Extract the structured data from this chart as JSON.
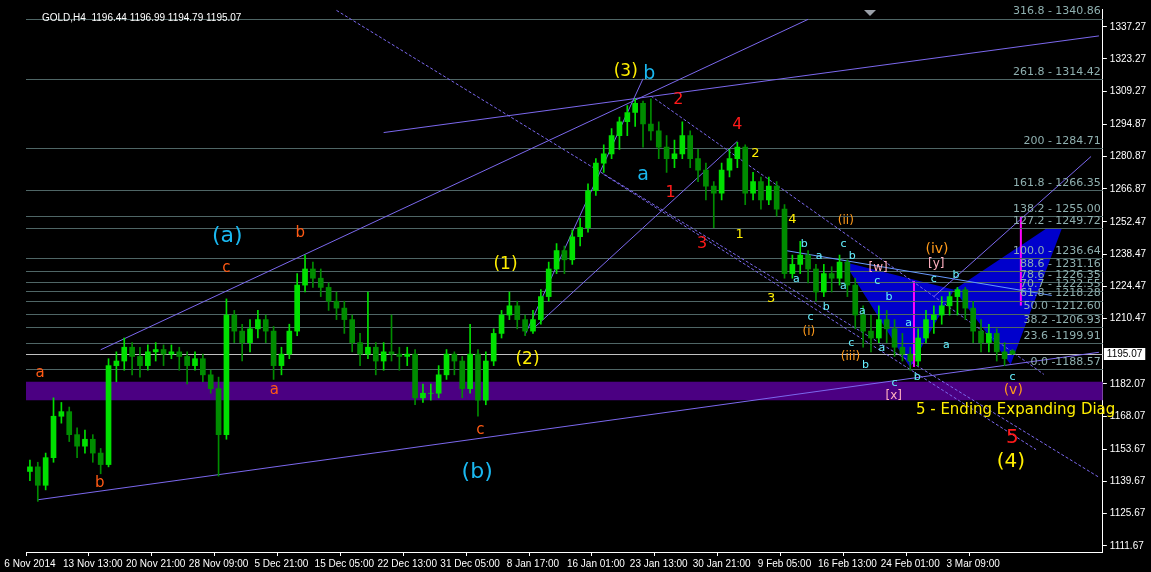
{
  "chart_data": {
    "type": "candlestick",
    "title": "GOLD,H4  1196.44 1196.99 1194.79 1195.07",
    "categories": [
      "6 Nov 2014",
      null,
      null,
      null,
      null,
      null,
      null,
      null,
      "13 Nov 13:00",
      null,
      null,
      null,
      null,
      null,
      null,
      null,
      "20 Nov 21:00",
      null,
      null,
      null,
      null,
      null,
      null,
      null,
      "28 Nov 09:00",
      null,
      null,
      null,
      null,
      null,
      null,
      null,
      "5 Dec 21:00",
      null,
      null,
      null,
      null,
      null,
      null,
      null,
      "15 Dec 05:00",
      null,
      null,
      null,
      null,
      null,
      null,
      null,
      "22 Dec 13:00",
      null,
      null,
      null,
      null,
      null,
      null,
      null,
      "31 Dec 05:00",
      null,
      null,
      null,
      null,
      null,
      null,
      null,
      "8 Jan 17:00",
      null,
      null,
      null,
      null,
      null,
      null,
      null,
      "16 Jan 01:00",
      null,
      null,
      null,
      null,
      null,
      null,
      null,
      "23 Jan 13:00",
      null,
      null,
      null,
      null,
      null,
      null,
      null,
      "30 Jan 21:00",
      null,
      null,
      null,
      null,
      null,
      null,
      null,
      "9 Feb 05:00",
      null,
      null,
      null,
      null,
      null,
      null,
      null,
      "16 Feb 13:00",
      null,
      null,
      null,
      null,
      null,
      null,
      null,
      "24 Feb 01:00",
      null,
      null,
      null,
      null,
      null,
      null,
      null,
      "3 Mar 09:00",
      null,
      null,
      null,
      null,
      null,
      null,
      null,
      null,
      null,
      null,
      null,
      null,
      null,
      null,
      null,
      null
    ],
    "ohlc": [
      [
        1144,
        1149,
        1140,
        1146
      ],
      [
        1146,
        1148,
        1131,
        1138
      ],
      [
        1138,
        1152,
        1136,
        1150
      ],
      [
        1150,
        1176,
        1148,
        1168
      ],
      [
        1168,
        1174,
        1165,
        1170
      ],
      [
        1170,
        1172,
        1157,
        1160
      ],
      [
        1160,
        1163,
        1150,
        1155
      ],
      [
        1155,
        1162,
        1152,
        1158
      ],
      [
        1158,
        1160,
        1148,
        1152
      ],
      [
        1152,
        1154,
        1143,
        1147
      ],
      [
        1147,
        1193,
        1146,
        1190
      ],
      [
        1190,
        1196,
        1183,
        1192
      ],
      [
        1192,
        1202,
        1188,
        1198
      ],
      [
        1198,
        1200,
        1186,
        1194
      ],
      [
        1194,
        1198,
        1185,
        1190
      ],
      [
        1190,
        1199,
        1188,
        1196
      ],
      [
        1196,
        1200,
        1192,
        1197
      ],
      [
        1197,
        1199,
        1190,
        1195
      ],
      [
        1195,
        1199,
        1193,
        1196
      ],
      [
        1196,
        1198,
        1188,
        1194
      ],
      [
        1194,
        1196,
        1182,
        1190
      ],
      [
        1190,
        1196,
        1188,
        1193
      ],
      [
        1193,
        1195,
        1183,
        1186
      ],
      [
        1186,
        1188,
        1178,
        1180
      ],
      [
        1180,
        1185,
        1142,
        1160
      ],
      [
        1160,
        1219,
        1158,
        1212
      ],
      [
        1212,
        1214,
        1200,
        1205
      ],
      [
        1205,
        1208,
        1192,
        1200
      ],
      [
        1200,
        1210,
        1196,
        1206
      ],
      [
        1206,
        1214,
        1202,
        1210
      ],
      [
        1210,
        1212,
        1200,
        1205
      ],
      [
        1205,
        1207,
        1184,
        1190
      ],
      [
        1190,
        1198,
        1186,
        1195
      ],
      [
        1195,
        1208,
        1193,
        1205
      ],
      [
        1205,
        1230,
        1203,
        1225
      ],
      [
        1225,
        1238,
        1222,
        1232
      ],
      [
        1232,
        1235,
        1224,
        1228
      ],
      [
        1228,
        1232,
        1220,
        1224
      ],
      [
        1224,
        1226,
        1214,
        1218
      ],
      [
        1218,
        1222,
        1210,
        1215
      ],
      [
        1215,
        1218,
        1204,
        1210
      ],
      [
        1210,
        1212,
        1196,
        1200
      ],
      [
        1200,
        1204,
        1190,
        1195
      ],
      [
        1195,
        1222,
        1193,
        1198
      ],
      [
        1198,
        1200,
        1186,
        1192
      ],
      [
        1192,
        1200,
        1188,
        1196
      ],
      [
        1196,
        1212,
        1192,
        1195
      ],
      [
        1195,
        1198,
        1188,
        1194
      ],
      [
        1194,
        1198,
        1190,
        1195
      ],
      [
        1195,
        1197,
        1173,
        1176
      ],
      [
        1176,
        1182,
        1174,
        1178
      ],
      [
        1178,
        1182,
        1175,
        1178
      ],
      [
        1178,
        1190,
        1176,
        1186
      ],
      [
        1186,
        1197,
        1184,
        1195
      ],
      [
        1195,
        1196,
        1186,
        1192
      ],
      [
        1192,
        1194,
        1176,
        1180
      ],
      [
        1180,
        1208,
        1178,
        1195
      ],
      [
        1195,
        1197,
        1168,
        1175
      ],
      [
        1175,
        1196,
        1173,
        1192
      ],
      [
        1192,
        1206,
        1190,
        1204
      ],
      [
        1204,
        1214,
        1202,
        1212
      ],
      [
        1212,
        1222,
        1210,
        1216
      ],
      [
        1216,
        1218,
        1206,
        1210
      ],
      [
        1210,
        1212,
        1203,
        1205
      ],
      [
        1205,
        1214,
        1204,
        1210
      ],
      [
        1210,
        1223,
        1208,
        1220
      ],
      [
        1220,
        1235,
        1218,
        1232
      ],
      [
        1232,
        1243,
        1230,
        1240
      ],
      [
        1240,
        1242,
        1230,
        1236
      ],
      [
        1236,
        1249,
        1234,
        1246
      ],
      [
        1246,
        1254,
        1242,
        1250
      ],
      [
        1250,
        1269,
        1248,
        1266
      ],
      [
        1266,
        1280,
        1264,
        1278
      ],
      [
        1278,
        1286,
        1274,
        1282
      ],
      [
        1282,
        1293,
        1280,
        1290
      ],
      [
        1290,
        1298,
        1284,
        1296
      ],
      [
        1296,
        1303,
        1290,
        1300
      ],
      [
        1300,
        1306,
        1294,
        1304
      ],
      [
        1304,
        1305,
        1285,
        1295
      ],
      [
        1295,
        1306,
        1288,
        1292
      ],
      [
        1292,
        1296,
        1280,
        1285
      ],
      [
        1285,
        1290,
        1274,
        1280
      ],
      [
        1280,
        1288,
        1276,
        1282
      ],
      [
        1282,
        1296,
        1280,
        1290
      ],
      [
        1290,
        1292,
        1276,
        1280
      ],
      [
        1280,
        1284,
        1270,
        1275
      ],
      [
        1275,
        1278,
        1262,
        1268
      ],
      [
        1268,
        1270,
        1250,
        1265
      ],
      [
        1265,
        1278,
        1262,
        1275
      ],
      [
        1275,
        1284,
        1272,
        1280
      ],
      [
        1280,
        1287,
        1276,
        1285
      ],
      [
        1285,
        1286,
        1260,
        1265
      ],
      [
        1265,
        1274,
        1262,
        1270
      ],
      [
        1270,
        1272,
        1258,
        1262
      ],
      [
        1262,
        1272,
        1260,
        1268
      ],
      [
        1268,
        1270,
        1255,
        1258
      ],
      [
        1258,
        1260,
        1228,
        1230
      ],
      [
        1230,
        1238,
        1228,
        1234
      ],
      [
        1234,
        1244,
        1230,
        1238
      ],
      [
        1238,
        1240,
        1226,
        1232
      ],
      [
        1232,
        1234,
        1218,
        1222
      ],
      [
        1222,
        1234,
        1220,
        1230
      ],
      [
        1230,
        1233,
        1222,
        1228
      ],
      [
        1228,
        1238,
        1225,
        1235
      ],
      [
        1235,
        1236,
        1220,
        1225
      ],
      [
        1225,
        1228,
        1206,
        1212
      ],
      [
        1212,
        1216,
        1198,
        1205
      ],
      [
        1205,
        1212,
        1196,
        1202
      ],
      [
        1202,
        1216,
        1200,
        1210
      ],
      [
        1210,
        1214,
        1200,
        1206
      ],
      [
        1206,
        1210,
        1194,
        1198
      ],
      [
        1198,
        1204,
        1192,
        1195
      ],
      [
        1195,
        1198,
        1188,
        1192
      ],
      [
        1192,
        1206,
        1190,
        1202
      ],
      [
        1202,
        1214,
        1200,
        1210
      ],
      [
        1210,
        1216,
        1204,
        1212
      ],
      [
        1212,
        1220,
        1208,
        1216
      ],
      [
        1216,
        1222,
        1212,
        1220
      ],
      [
        1220,
        1224,
        1212,
        1223
      ],
      [
        1223,
        1224,
        1210,
        1215
      ],
      [
        1215,
        1218,
        1200,
        1205
      ],
      [
        1205,
        1210,
        1196,
        1200
      ],
      [
        1200,
        1208,
        1196,
        1204
      ],
      [
        1204,
        1206,
        1192,
        1196
      ],
      [
        1196,
        1200,
        1190,
        1193
      ],
      [
        1196.44,
        1196.99,
        1194.79,
        1195.07
      ],
      null,
      null,
      null,
      null,
      null,
      null,
      null,
      null,
      null,
      null,
      null
    ],
    "colors": [
      "#00e000",
      "#008c00",
      "#00e000",
      "#00e000",
      "#00e000",
      "#008c00",
      "#008c00",
      "#00e000",
      "#008c00",
      "#008c00",
      "#00e000",
      "#00e000",
      "#00e000",
      "#008c00",
      "#008c00",
      "#00e000",
      "#00e000",
      "#008c00",
      "#00e000",
      "#008c00",
      "#008c00",
      "#00e000",
      "#008c00",
      "#008c00",
      "#008c00",
      "#00e000",
      "#008c00",
      "#008c00",
      "#00e000",
      "#00e000",
      "#008c00",
      "#008c00",
      "#00e000",
      "#00e000",
      "#00e000",
      "#00e000",
      "#008c00",
      "#008c00",
      "#008c00",
      "#008c00",
      "#008c00",
      "#008c00",
      "#008c00",
      "#00e000",
      "#008c00",
      "#00e000",
      "#008c00",
      "#008c00",
      "#00e000",
      "#008c00",
      "#00e000",
      "#00e000",
      "#00e000",
      "#00e000",
      "#008c00",
      "#008c00",
      "#00e000",
      "#008c00",
      "#00e000",
      "#00e000",
      "#00e000",
      "#00e000",
      "#008c00",
      "#008c00",
      "#00e000",
      "#00e000",
      "#00e000",
      "#00e000",
      "#008c00",
      "#00e000",
      "#00e000",
      "#00e000",
      "#00e000",
      "#00e000",
      "#00e000",
      "#00e000",
      "#00e000",
      "#00e000",
      "#008c00",
      "#008c00",
      "#008c00",
      "#008c00",
      "#00e000",
      "#00e000",
      "#008c00",
      "#008c00",
      "#008c00",
      "#008c00",
      "#00e000",
      "#00e000",
      "#00e000",
      "#008c00",
      "#00e000",
      "#008c00",
      "#00e000",
      "#008c00",
      "#008c00",
      "#00e000",
      "#00e000",
      "#008c00",
      "#008c00",
      "#00e000",
      "#008c00",
      "#00e000",
      "#008c00",
      "#008c00",
      "#008c00",
      "#008c00",
      "#00e000",
      "#008c00",
      "#008c00",
      "#008c00",
      "#008c00",
      "#00e000",
      "#00e000",
      "#00e000",
      "#00e000",
      "#00e000",
      "#00e000",
      "#008c00",
      "#008c00",
      "#008c00",
      "#00e000",
      "#008c00",
      "#008c00",
      "#008c00",
      null,
      null,
      null,
      null,
      null,
      null,
      null,
      null,
      null,
      null,
      null
    ],
    "series": [
      {
        "type": "line",
        "color": "#7b68ee",
        "values": [
          null,
          1131.7,
          null,
          null,
          null,
          null,
          null,
          null,
          null,
          null,
          null,
          null,
          null,
          null,
          null,
          null,
          null,
          null,
          null,
          null,
          null,
          null,
          null,
          null,
          null,
          null,
          null,
          null,
          null,
          null,
          null,
          null,
          null,
          null,
          null,
          null,
          null,
          null,
          null,
          null,
          null,
          null,
          null,
          null,
          null,
          null,
          null,
          null,
          null,
          null,
          null,
          null,
          null,
          null,
          null,
          null,
          null,
          null,
          null,
          null,
          null,
          null,
          null,
          null,
          null,
          null,
          null,
          null,
          null,
          null,
          null,
          null,
          null,
          null,
          null,
          null,
          null,
          null,
          null,
          null,
          null,
          null,
          null,
          null,
          null,
          null,
          null,
          null,
          null,
          null,
          null,
          null,
          null,
          null,
          null,
          null,
          null,
          null,
          null,
          null,
          null,
          null,
          null,
          null,
          null,
          null,
          null,
          null,
          null,
          null,
          null,
          null,
          null,
          null,
          null,
          null,
          null,
          null,
          null,
          null,
          null,
          null,
          null,
          null,
          null,
          null,
          null,
          null,
          null,
          null,
          null,
          null,
          null,
          null,
          null,
          null,
          1195.8
        ]
      },
      {
        "type": "line",
        "color": "#7b68ee",
        "values": [
          null,
          null,
          null,
          null,
          null,
          null,
          null,
          null,
          null,
          1196.9,
          null,
          null,
          null,
          null,
          null,
          null,
          null,
          null,
          null,
          null,
          null,
          null,
          null,
          null,
          null,
          null,
          null,
          null,
          null,
          null,
          null,
          null,
          null,
          null,
          null,
          null,
          null,
          null,
          null,
          null,
          null,
          null,
          null,
          null,
          null,
          null,
          null,
          null,
          null,
          null,
          null,
          null,
          null,
          null,
          null,
          null,
          null,
          null,
          null,
          null,
          null,
          null,
          null,
          null,
          null,
          null,
          null,
          null,
          null,
          null,
          null,
          null,
          null,
          null,
          null,
          null,
          null,
          null,
          null,
          null,
          null,
          null,
          null,
          null,
          null,
          null,
          null,
          null,
          null,
          null,
          null,
          null,
          null,
          null,
          null,
          null,
          null,
          null,
          null,
          1340.5,
          null,
          null,
          null,
          null,
          null,
          null,
          null,
          null,
          null,
          null,
          null,
          null,
          null,
          null,
          null,
          null,
          null,
          null,
          null,
          null,
          null,
          null,
          null,
          null,
          null,
          null,
          null,
          null,
          null,
          null,
          null,
          null,
          null,
          null,
          null,
          null,
          null
        ]
      },
      {
        "type": "line",
        "color": "#7b68ee",
        "values": [
          null,
          null,
          null,
          null,
          null,
          null,
          null,
          null,
          null,
          null,
          null,
          null,
          null,
          null,
          null,
          null,
          null,
          null,
          null,
          null,
          null,
          null,
          null,
          null,
          null,
          null,
          null,
          null,
          null,
          null,
          null,
          null,
          null,
          null,
          null,
          null,
          null,
          null,
          null,
          null,
          null,
          null,
          null,
          null,
          null,
          1291.3,
          null,
          null,
          null,
          null,
          null,
          null,
          null,
          null,
          null,
          null,
          null,
          null,
          null,
          null,
          null,
          null,
          null,
          null,
          null,
          null,
          null,
          null,
          null,
          null,
          null,
          null,
          null,
          null,
          null,
          null,
          null,
          null,
          null,
          null,
          null,
          null,
          null,
          null,
          null,
          null,
          null,
          null,
          null,
          null,
          null,
          null,
          null,
          null,
          null,
          null,
          null,
          null,
          null,
          null,
          null,
          null,
          null,
          null,
          null,
          null,
          null,
          null,
          null,
          null,
          null,
          null,
          null,
          null,
          null,
          null,
          null,
          null,
          null,
          null,
          null,
          null,
          null,
          null,
          null,
          null,
          null,
          null,
          null,
          null,
          null,
          null,
          null,
          null,
          null,
          null,
          1333.3
        ]
      },
      {
        "type": "line",
        "color": "#7b68ee",
        "values": [
          null,
          null,
          null,
          null,
          null,
          null,
          null,
          null,
          null,
          null,
          null,
          null,
          null,
          null,
          null,
          null,
          null,
          null,
          null,
          null,
          null,
          null,
          null,
          null,
          null,
          null,
          null,
          null,
          null,
          null,
          null,
          null,
          null,
          null,
          null,
          null,
          null,
          null,
          null,
          null,
          null,
          null,
          null,
          null,
          null,
          null,
          null,
          null,
          null,
          null,
          null,
          null,
          null,
          null,
          null,
          null,
          null,
          null,
          null,
          null,
          null,
          null,
          null,
          1203.5,
          null,
          null,
          null,
          null,
          null,
          null,
          null,
          null,
          null,
          null,
          null,
          null,
          null,
          null,
          1314.7,
          null,
          null,
          null,
          null,
          null,
          null,
          null,
          null,
          null,
          null,
          null,
          null,
          null,
          null,
          null,
          null,
          null,
          null,
          null,
          null,
          null,
          null,
          null,
          null,
          null,
          null,
          null,
          null,
          null,
          null,
          null,
          null,
          null,
          null,
          null,
          null,
          null,
          null,
          null,
          null,
          null,
          null,
          null,
          null,
          null,
          null,
          null,
          null,
          null,
          null,
          null,
          null,
          null,
          null,
          null,
          null,
          null,
          null
        ]
      },
      {
        "type": "line",
        "color": "#7b68ee",
        "values": [
          null,
          null,
          null,
          null,
          null,
          null,
          null,
          null,
          null,
          null,
          null,
          null,
          null,
          null,
          null,
          null,
          null,
          null,
          null,
          null,
          null,
          null,
          null,
          null,
          null,
          null,
          null,
          null,
          null,
          null,
          null,
          null,
          null,
          null,
          null,
          null,
          null,
          null,
          null,
          null,
          null,
          null,
          null,
          null,
          null,
          null,
          null,
          null,
          null,
          null,
          null,
          null,
          null,
          null,
          null,
          null,
          null,
          null,
          null,
          null,
          null,
          null,
          null,
          null,
          1206.0,
          null,
          null,
          null,
          null,
          null,
          null,
          null,
          null,
          null,
          null,
          null,
          null,
          null,
          null,
          null,
          null,
          null,
          null,
          null,
          null,
          null,
          null,
          null,
          null,
          null,
          1287.5,
          null,
          null,
          null,
          null,
          null,
          null,
          null,
          null,
          null,
          null,
          null,
          null,
          null,
          null,
          null,
          null,
          null,
          null,
          null,
          null,
          null,
          null,
          null,
          null,
          null,
          null,
          null,
          null,
          null,
          null,
          null,
          null,
          null,
          null,
          null,
          null,
          null,
          null,
          null,
          null,
          null,
          null,
          null,
          null,
          null,
          null
        ]
      },
      {
        "type": "line",
        "color": "#7b68ee",
        "values": [
          null,
          null,
          null,
          null,
          null,
          null,
          null,
          null,
          null,
          null,
          null,
          null,
          null,
          null,
          null,
          null,
          null,
          null,
          null,
          null,
          null,
          null,
          null,
          null,
          null,
          null,
          null,
          null,
          null,
          null,
          null,
          null,
          null,
          null,
          null,
          null,
          null,
          null,
          null,
          null,
          null,
          null,
          null,
          null,
          null,
          null,
          null,
          null,
          null,
          null,
          null,
          null,
          null,
          null,
          null,
          null,
          null,
          null,
          null,
          null,
          null,
          null,
          null,
          null,
          null,
          null,
          null,
          null,
          null,
          null,
          null,
          null,
          null,
          null,
          null,
          null,
          null,
          null,
          null,
          null,
          null,
          null,
          null,
          null,
          null,
          null,
          null,
          null,
          null,
          null,
          null,
          null,
          null,
          null,
          null,
          null,
          null,
          null,
          null,
          null,
          null,
          null,
          null,
          null,
          null,
          null,
          null,
          null,
          null,
          null,
          null,
          null,
          null,
          null,
          null,
          1220.0,
          null,
          null,
          null,
          null,
          null,
          null,
          null,
          null,
          null,
          null,
          null,
          null,
          null,
          null,
          null,
          null,
          null,
          null,
          null,
          1280.9,
          null
        ]
      },
      {
        "type": "line",
        "color": "#7b68ee",
        "line_style": "dashed",
        "values": [
          null,
          null,
          null,
          null,
          null,
          null,
          null,
          null,
          null,
          null,
          null,
          null,
          null,
          null,
          null,
          null,
          null,
          null,
          null,
          null,
          null,
          null,
          null,
          null,
          null,
          null,
          null,
          null,
          null,
          null,
          null,
          null,
          null,
          null,
          null,
          null,
          null,
          null,
          null,
          1344.4,
          null,
          null,
          null,
          null,
          null,
          null,
          null,
          null,
          null,
          null,
          null,
          null,
          null,
          null,
          null,
          null,
          null,
          null,
          null,
          null,
          null,
          null,
          null,
          null,
          null,
          null,
          null,
          null,
          null,
          null,
          null,
          null,
          null,
          null,
          null,
          null,
          null,
          null,
          null,
          null,
          null,
          null,
          null,
          null,
          null,
          null,
          null,
          null,
          null,
          null,
          null,
          null,
          null,
          null,
          null,
          null,
          null,
          null,
          null,
          null,
          null,
          null,
          null,
          null,
          null,
          null,
          null,
          null,
          null,
          null,
          null,
          null,
          null,
          null,
          null,
          null,
          null,
          null,
          null,
          null,
          null,
          null,
          null,
          null,
          null,
          null,
          null,
          null,
          null,
          null,
          null,
          null,
          null,
          null,
          null,
          null,
          1141.5
        ]
      },
      {
        "type": "line",
        "color": "#7b68ee",
        "line_style": "dashed",
        "values": [
          null,
          null,
          null,
          null,
          null,
          null,
          null,
          null,
          null,
          null,
          null,
          null,
          null,
          null,
          null,
          null,
          null,
          null,
          null,
          null,
          null,
          null,
          null,
          null,
          null,
          null,
          null,
          null,
          null,
          null,
          null,
          null,
          null,
          null,
          null,
          null,
          null,
          null,
          null,
          null,
          null,
          null,
          null,
          null,
          null,
          null,
          null,
          null,
          null,
          null,
          null,
          null,
          null,
          null,
          null,
          null,
          null,
          null,
          null,
          null,
          null,
          null,
          null,
          null,
          null,
          null,
          null,
          null,
          null,
          null,
          null,
          null,
          null,
          null,
          null,
          null,
          null,
          null,
          null,
          1307.2,
          null,
          null,
          null,
          null,
          null,
          null,
          null,
          null,
          null,
          null,
          null,
          null,
          null,
          null,
          null,
          null,
          null,
          null,
          null,
          null,
          null,
          null,
          null,
          null,
          null,
          null,
          null,
          null,
          null,
          null,
          null,
          null,
          null,
          null,
          null,
          null,
          null,
          null,
          null,
          null,
          null,
          null,
          null,
          null,
          null,
          null,
          null,
          null,
          null,
          1186.2,
          null,
          null,
          null,
          null,
          null,
          null,
          null
        ]
      },
      {
        "type": "line",
        "color": "#7b68ee",
        "line_style": "dashed",
        "values": [
          null,
          null,
          null,
          null,
          null,
          null,
          null,
          null,
          null,
          null,
          null,
          null,
          null,
          null,
          null,
          null,
          null,
          null,
          null,
          null,
          null,
          null,
          null,
          null,
          null,
          null,
          null,
          null,
          null,
          null,
          null,
          null,
          null,
          null,
          null,
          null,
          null,
          null,
          null,
          null,
          null,
          null,
          null,
          null,
          null,
          null,
          null,
          null,
          null,
          null,
          null,
          null,
          null,
          null,
          null,
          null,
          null,
          null,
          null,
          null,
          null,
          null,
          null,
          null,
          null,
          null,
          null,
          null,
          null,
          null,
          null,
          null,
          null,
          1273.1,
          null,
          null,
          null,
          null,
          null,
          null,
          null,
          null,
          null,
          null,
          null,
          null,
          null,
          null,
          null,
          null,
          null,
          null,
          null,
          null,
          null,
          null,
          null,
          null,
          null,
          null,
          null,
          null,
          null,
          null,
          null,
          null,
          null,
          null,
          null,
          null,
          null,
          null,
          null,
          null,
          null,
          null,
          null,
          null,
          null,
          null,
          null,
          null,
          null,
          null,
          null,
          null,
          null,
          null,
          1153.5,
          null,
          null,
          null,
          null,
          null,
          null,
          null,
          null
        ]
      },
      {
        "type": "line",
        "color": "#6699ff",
        "values": [
          null,
          null,
          null,
          null,
          null,
          null,
          null,
          null,
          null,
          null,
          null,
          null,
          null,
          null,
          null,
          null,
          null,
          null,
          null,
          null,
          null,
          null,
          null,
          null,
          null,
          null,
          null,
          null,
          null,
          null,
          null,
          null,
          null,
          null,
          null,
          null,
          null,
          null,
          null,
          null,
          null,
          null,
          null,
          null,
          null,
          null,
          null,
          null,
          null,
          null,
          null,
          null,
          null,
          null,
          null,
          null,
          null,
          null,
          null,
          null,
          null,
          null,
          null,
          null,
          null,
          null,
          null,
          null,
          null,
          null,
          null,
          null,
          null,
          null,
          null,
          null,
          null,
          null,
          null,
          null,
          null,
          null,
          null,
          null,
          null,
          null,
          null,
          null,
          null,
          null,
          null,
          null,
          null,
          null,
          null,
          null,
          1240.1,
          null,
          null,
          null,
          null,
          null,
          null,
          null,
          null,
          null,
          null,
          null,
          null,
          null,
          null,
          null,
          null,
          null,
          null,
          null,
          null,
          null,
          null,
          null,
          null,
          null,
          null,
          null,
          null,
          null,
          null,
          null,
          null,
          null,
          1220.5,
          null,
          null,
          null,
          null,
          null,
          null
        ]
      }
    ],
    "ylim": [
      1109,
      1345
    ],
    "yticks": [
      1111.67,
      1125.67,
      1139.67,
      1153.67,
      1168.07,
      1182.07,
      1210.47,
      1224.47,
      1238.47,
      1252.47,
      1266.87,
      1280.87,
      1294.87,
      1309.27,
      1323.27,
      1337.27
    ],
    "bands": [
      {
        "axis": "y",
        "from": 1175,
        "to": 1183,
        "color": "#4b0082"
      }
    ],
    "ref_lines": [
      {
        "axis": "y",
        "value": 1340.86,
        "color": "#4f6666"
      },
      {
        "axis": "y",
        "value": 1314.42,
        "color": "#4f6666"
      },
      {
        "axis": "y",
        "value": 1284.71,
        "color": "#4f6666"
      },
      {
        "axis": "y",
        "value": 1266.35,
        "color": "#4f6666"
      },
      {
        "axis": "y",
        "value": 1255.0,
        "color": "#4f6666"
      },
      {
        "axis": "y",
        "value": 1249.72,
        "color": "#4f6666"
      },
      {
        "axis": "y",
        "value": 1236.64,
        "color": "#4f6666"
      },
      {
        "axis": "y",
        "value": 1231.16,
        "color": "#4f6666"
      },
      {
        "axis": "y",
        "value": 1226.35,
        "color": "#4f6666"
      },
      {
        "axis": "y",
        "value": 1222.55,
        "color": "#4f6666"
      },
      {
        "axis": "y",
        "value": 1218.28,
        "color": "#4f6666"
      },
      {
        "axis": "y",
        "value": 1212.6,
        "color": "#4f6666"
      },
      {
        "axis": "y",
        "value": 1206.93,
        "color": "#4f6666"
      },
      {
        "axis": "y",
        "value": 1199.91,
        "color": "#4f6666"
      },
      {
        "axis": "y",
        "value": 1188.57,
        "color": "#4f6666"
      },
      {
        "axis": "y",
        "value": 1195.07,
        "label": "1195.07",
        "color": "#c0c0c0"
      }
    ],
    "annotations": [
      "(a)",
      "b",
      "c",
      "a",
      "b",
      "a",
      "c",
      "(b)",
      "(1)",
      "(2)",
      "(3)",
      "b",
      "a",
      "2",
      "1",
      "4",
      "3",
      "2",
      "1",
      "4",
      "3",
      "(ii)",
      "(i)",
      "(iii)",
      "(iv)",
      "[w]",
      "[y]",
      "[x]",
      "(v)",
      "5 - Ending Expanding Diag",
      "5",
      "(4)",
      "b",
      "a",
      "a",
      "c",
      "b",
      "a",
      "c",
      "b",
      "c",
      "b",
      "c",
      "b",
      "a",
      "c",
      "a",
      "b",
      "a",
      "a",
      "c",
      "b",
      "c",
      "316.8 - 1340.86",
      "261.8 - 1314.42",
      "200 - 1284.71",
      "161.8 - 1266.35",
      "138.2 - 1255.00",
      "127.2 - 1249.72",
      "100.0 - 1236.64",
      "88.6 - 1231.16",
      "78.6 - 1226.35",
      "70.7 - 1222.55",
      "61.8 - 1218.28",
      "50.0 -1212.60",
      "38.2 -1206.93",
      "23.6 -1199.91",
      "0.0 -1188.57"
    ],
    "grid": false,
    "legend": false
  }
}
